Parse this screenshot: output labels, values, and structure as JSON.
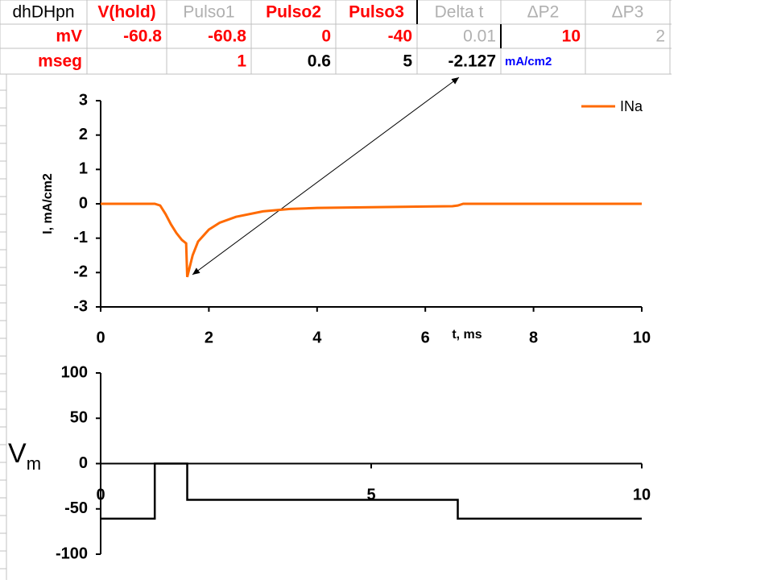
{
  "table": {
    "rows": [
      [
        "dhDHpn",
        "V(hold)",
        "Pulso1",
        "Pulso2",
        "Pulso3",
        "Delta t",
        "ΔP2",
        "ΔP3"
      ],
      [
        "mV",
        "-60.8",
        "-60.8",
        "0",
        "-40",
        "0.01",
        "10",
        "2"
      ],
      [
        "mseg",
        null,
        "1",
        "0.6",
        "5",
        "-2.127",
        "mA/cm2",
        null
      ]
    ]
  },
  "chart_data": [
    {
      "type": "line",
      "xlabel": "t, ms",
      "ylabel": "I, mA/cm2",
      "x": [
        0,
        1,
        1.1,
        1.2,
        1.3,
        1.4,
        1.5,
        1.58,
        1.6,
        1.7,
        1.8,
        2.0,
        2.2,
        2.5,
        3,
        3.5,
        4,
        5,
        6,
        6.5,
        6.6,
        6.7,
        10
      ],
      "series": [
        {
          "name": "INa",
          "color": "#ff6a00",
          "values": [
            0,
            0,
            -0.05,
            -0.3,
            -0.6,
            -0.85,
            -1.05,
            -1.15,
            -2.13,
            -1.5,
            -1.1,
            -0.75,
            -0.55,
            -0.38,
            -0.22,
            -0.15,
            -0.12,
            -0.1,
            -0.08,
            -0.07,
            -0.05,
            0,
            0
          ]
        }
      ],
      "xlim": [
        0,
        10
      ],
      "xticks": [
        0,
        2,
        4,
        6,
        8,
        10
      ],
      "ylim": [
        -3,
        3
      ],
      "yticks": [
        -3,
        -2,
        -1,
        0,
        1,
        2,
        3
      ],
      "legend": "top-right"
    },
    {
      "type": "line",
      "ylabel": {
        "text": "V",
        "subscript": "m"
      },
      "x": [
        0,
        1,
        1,
        1.6,
        1.6,
        6.6,
        6.6,
        10
      ],
      "series": [
        {
          "color": "#000000",
          "values": [
            -60.8,
            -60.8,
            0,
            0,
            -40,
            -40,
            -60.8,
            -60.8
          ]
        }
      ],
      "xlim": [
        0,
        10
      ],
      "xticks": [
        0,
        5,
        10
      ],
      "ylim": [
        -100,
        100
      ],
      "yticks": [
        -100,
        -50,
        0,
        50,
        100
      ]
    }
  ]
}
